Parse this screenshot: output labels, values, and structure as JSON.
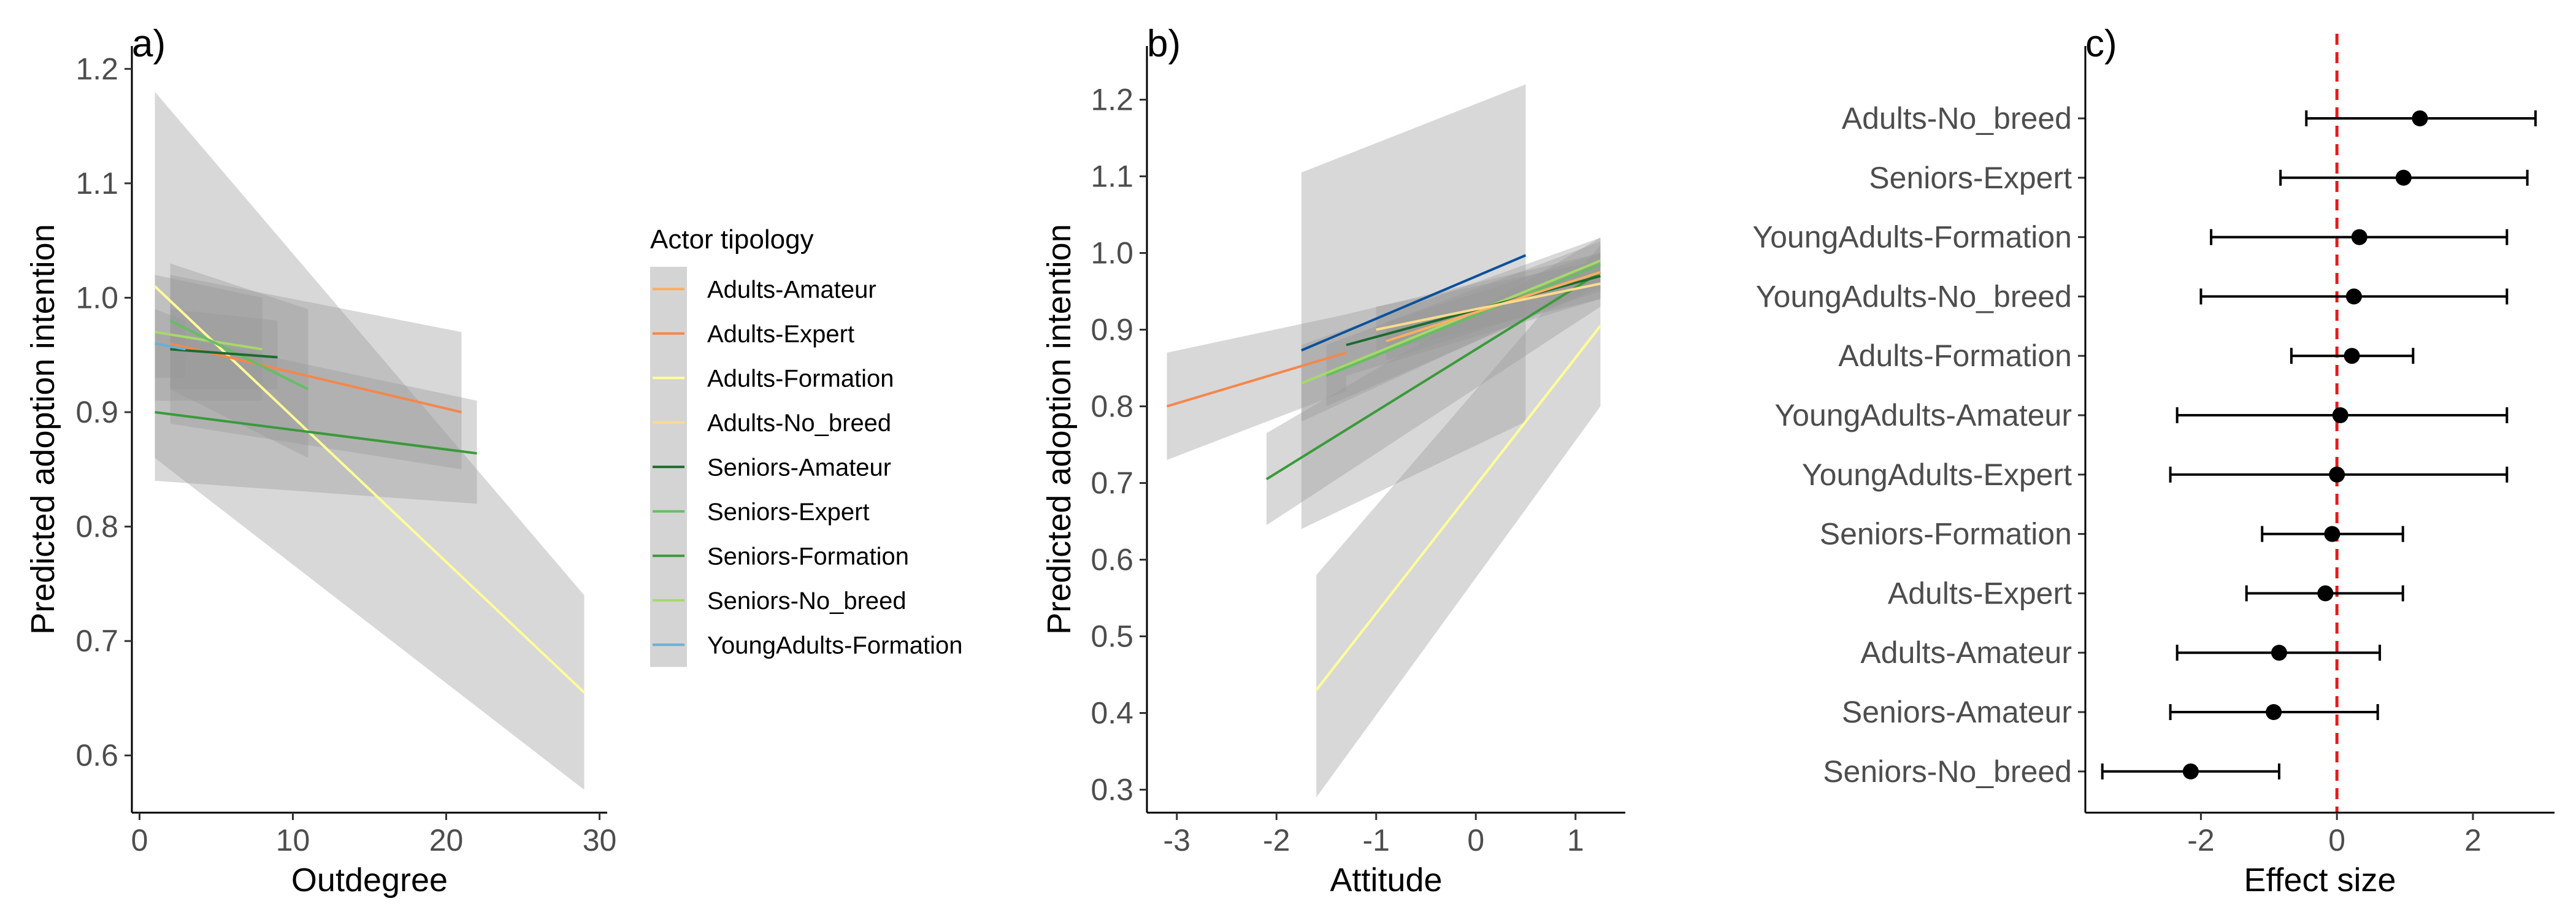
{
  "chart_data": [
    {
      "panel": "a)",
      "type": "line",
      "xlabel": "Outdegree",
      "ylabel": "Predicted adoption intention",
      "xlim": [
        -0.5,
        30.5
      ],
      "ylim": [
        0.55,
        1.22
      ],
      "xticks": [
        0,
        10,
        20,
        30
      ],
      "yticks": [
        0.6,
        0.7,
        0.8,
        0.9,
        1.0,
        1.1,
        1.2
      ],
      "ytick_labels": [
        "0.6",
        "0.7",
        "0.8",
        "0.9",
        "1.0",
        "1.1",
        "1.2"
      ],
      "legend": {
        "title": "Actor tipology",
        "entries": [
          {
            "name": "Adults-Amateur",
            "color": "#fdae61"
          },
          {
            "name": "Adults-Expert",
            "color": "#f4874b"
          },
          {
            "name": "Adults-Formation",
            "color": "#ffff99"
          },
          {
            "name": "Adults-No_breed",
            "color": "#fddb8f"
          },
          {
            "name": "Seniors-Amateur",
            "color": "#1b6b2e"
          },
          {
            "name": "Seniors-Expert",
            "color": "#66bd63"
          },
          {
            "name": "Seniors-Formation",
            "color": "#3a9a3a"
          },
          {
            "name": "Seniors-No_breed",
            "color": "#a6d96a"
          },
          {
            "name": "YoungAdults-Formation",
            "color": "#6baed6"
          }
        ]
      },
      "series": [
        {
          "name": "Adults-Formation",
          "color": "#ffff99",
          "x": [
            1,
            29
          ],
          "y": [
            1.01,
            0.655
          ],
          "band_lo": [
            0.86,
            0.57
          ],
          "band_hi": [
            1.18,
            0.74
          ]
        },
        {
          "name": "Adults-Expert",
          "color": "#f4874b",
          "x": [
            2,
            21
          ],
          "y": [
            0.96,
            0.9
          ],
          "band_lo": [
            0.89,
            0.85
          ],
          "band_hi": [
            1.02,
            0.97
          ]
        },
        {
          "name": "Seniors-Formation",
          "color": "#3a9a3a",
          "x": [
            1,
            22
          ],
          "y": [
            0.9,
            0.864
          ],
          "band_lo": [
            0.84,
            0.82
          ],
          "band_hi": [
            0.97,
            0.91
          ]
        },
        {
          "name": "Seniors-No_breed",
          "color": "#a6d96a",
          "x": [
            1,
            8
          ],
          "y": [
            0.97,
            0.955
          ],
          "band_lo": [
            0.91,
            0.91
          ],
          "band_hi": [
            1.02,
            1.0
          ]
        },
        {
          "name": "Seniors-Expert",
          "color": "#66bd63",
          "x": [
            2,
            11
          ],
          "y": [
            0.98,
            0.92
          ],
          "band_lo": [
            0.92,
            0.86
          ],
          "band_hi": [
            1.03,
            0.99
          ]
        },
        {
          "name": "Seniors-Amateur",
          "color": "#1b6b2e",
          "x": [
            2,
            9
          ],
          "y": [
            0.955,
            0.948
          ],
          "band_lo": [
            0.92,
            0.92
          ],
          "band_hi": [
            0.99,
            0.98
          ]
        },
        {
          "name": "YoungAdults-Formation",
          "color": "#6baed6",
          "x": [
            1,
            3
          ],
          "y": [
            0.96,
            0.955
          ],
          "band_lo": [
            0.93,
            0.93
          ],
          "band_hi": [
            0.99,
            0.98
          ]
        }
      ]
    },
    {
      "panel": "b)",
      "type": "line",
      "xlabel": "Attitude",
      "ylabel": "Predicted adoption intention",
      "xlim": [
        -3.3,
        1.5
      ],
      "ylim": [
        0.27,
        1.27
      ],
      "xticks": [
        -3,
        -2,
        -1,
        0,
        1
      ],
      "xtick_labels": [
        "-3",
        "-2",
        "-1",
        "0",
        "1"
      ],
      "yticks": [
        0.3,
        0.4,
        0.5,
        0.6,
        0.7,
        0.8,
        0.9,
        1.0,
        1.1,
        1.2
      ],
      "ytick_labels": [
        "0.3",
        "0.4",
        "0.5",
        "0.6",
        "0.7",
        "0.8",
        "0.9",
        "1.0",
        "1.1",
        "1.2"
      ],
      "series": [
        {
          "name": "Adults-Expert",
          "color": "#f4874b",
          "x": [
            -3.1,
            -1.3
          ],
          "y": [
            0.8,
            0.87
          ],
          "band_lo": [
            0.73,
            0.82
          ],
          "band_hi": [
            0.87,
            0.92
          ]
        },
        {
          "name": "Adults-Formation",
          "color": "#ffff99",
          "x": [
            -1.6,
            1.25
          ],
          "y": [
            0.43,
            0.905
          ],
          "band_lo": [
            0.29,
            0.8
          ],
          "band_hi": [
            0.58,
            1.01
          ]
        },
        {
          "name": "Seniors-Formation",
          "color": "#3a9a3a",
          "x": [
            -2.1,
            1.25
          ],
          "y": [
            0.705,
            0.975
          ],
          "band_lo": [
            0.645,
            0.93
          ],
          "band_hi": [
            0.765,
            1.02
          ]
        },
        {
          "name": "YoungAdults-Expert",
          "color": "#08519c",
          "x": [
            -1.75,
            0.5
          ],
          "y": [
            0.873,
            0.997
          ],
          "band_lo": [
            0.64,
            0.78
          ],
          "band_hi": [
            1.105,
            1.22
          ]
        },
        {
          "name": "Seniors-No_breed",
          "color": "#a6d96a",
          "x": [
            -1.75,
            1.25
          ],
          "y": [
            0.83,
            0.99
          ],
          "band_lo": [
            0.78,
            0.96
          ],
          "band_hi": [
            0.88,
            1.02
          ]
        },
        {
          "name": "Seniors-Expert",
          "color": "#66bd63",
          "x": [
            -1.5,
            1.25
          ],
          "y": [
            0.84,
            0.985
          ],
          "band_lo": [
            0.8,
            0.955
          ],
          "band_hi": [
            0.88,
            1.015
          ]
        },
        {
          "name": "Seniors-Amateur",
          "color": "#1b6b2e",
          "x": [
            -1.3,
            1.25
          ],
          "y": [
            0.88,
            0.97
          ],
          "band_lo": [
            0.84,
            0.94
          ],
          "band_hi": [
            0.92,
            1.0
          ]
        },
        {
          "name": "Adults-Amateur",
          "color": "#fdae61",
          "x": [
            -0.9,
            1.25
          ],
          "y": [
            0.885,
            0.975
          ],
          "band_lo": [
            0.86,
            0.95
          ],
          "band_hi": [
            0.91,
            1.0
          ]
        },
        {
          "name": "Adults-No_breed",
          "color": "#fddb8f",
          "x": [
            -1.0,
            1.25
          ],
          "y": [
            0.9,
            0.96
          ],
          "band_lo": [
            0.87,
            0.94
          ],
          "band_hi": [
            0.93,
            0.99
          ]
        }
      ]
    },
    {
      "panel": "c)",
      "type": "scatter",
      "xlabel": "Effect size",
      "xlim": [
        -3.7,
        3.2
      ],
      "xticks": [
        -2,
        0,
        2
      ],
      "xtick_labels": [
        "-2",
        "0",
        "2"
      ],
      "reference_line": 0,
      "categories": [
        "Adults-No_breed",
        "Seniors-Expert",
        "YoungAdults-Formation",
        "YoungAdults-No_breed",
        "Adults-Formation",
        "YoungAdults-Amateur",
        "YoungAdults-Expert",
        "Seniors-Formation",
        "Adults-Expert",
        "Adults-Amateur",
        "Seniors-Amateur",
        "Seniors-No_breed"
      ],
      "estimates": [
        1.22,
        0.98,
        0.33,
        0.25,
        0.22,
        0.05,
        0.0,
        -0.07,
        -0.17,
        -0.85,
        -0.93,
        -2.15
      ],
      "ci_low": [
        -0.45,
        -0.83,
        -1.85,
        -2.0,
        -0.67,
        -2.35,
        -2.45,
        -1.1,
        -1.33,
        -2.35,
        -2.45,
        -3.45
      ],
      "ci_high": [
        2.92,
        2.8,
        2.5,
        2.5,
        1.12,
        2.5,
        2.5,
        0.97,
        0.97,
        0.63,
        0.6,
        -0.85
      ]
    }
  ]
}
